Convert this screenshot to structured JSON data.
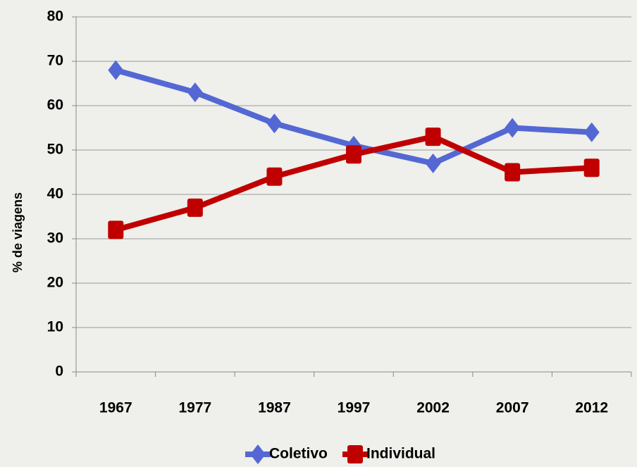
{
  "chart_data": {
    "type": "line",
    "y_label": "% de viagens",
    "categories": [
      "1967",
      "1977",
      "1987",
      "1997",
      "2002",
      "2007",
      "2012"
    ],
    "series": [
      {
        "name": "Coletivo",
        "color": "#5468d4",
        "marker": "diamond",
        "values": [
          68,
          63,
          56,
          51,
          47,
          55,
          54
        ]
      },
      {
        "name": "Individual",
        "color": "#c00000",
        "marker": "square",
        "values": [
          32,
          37,
          44,
          49,
          53,
          45,
          46
        ]
      }
    ],
    "ylim": [
      0,
      80
    ],
    "yticks": [
      0,
      10,
      20,
      30,
      40,
      50,
      60,
      70,
      80
    ],
    "grid": true,
    "legend": "bottom"
  }
}
